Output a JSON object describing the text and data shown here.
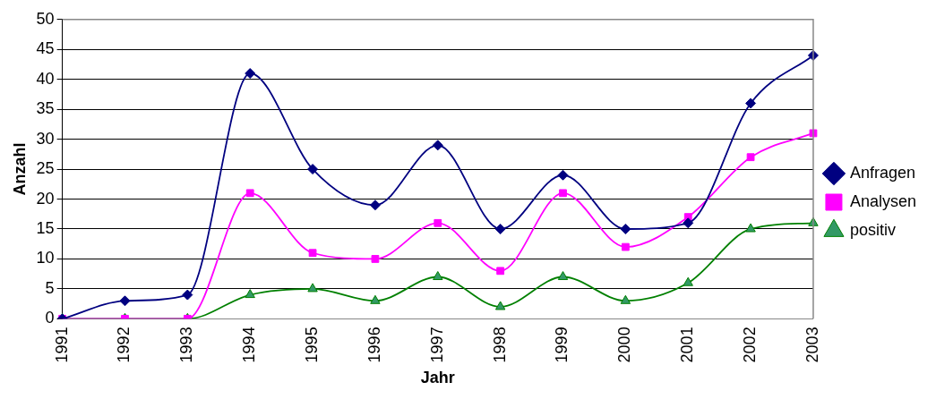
{
  "chart_data": {
    "type": "line",
    "xlabel": "Jahr",
    "ylabel": "Anzahl",
    "categories": [
      "1991",
      "1992",
      "1993",
      "1994",
      "1995",
      "1996",
      "1997",
      "1998",
      "1999",
      "2000",
      "2001",
      "2002",
      "2003"
    ],
    "series": [
      {
        "name": "Anfragen",
        "color": "#000080",
        "marker": "diamond",
        "values": [
          0,
          3,
          4,
          41,
          25,
          19,
          29,
          15,
          24,
          15,
          16,
          36,
          44
        ]
      },
      {
        "name": "Analysen",
        "color": "#ff00ff",
        "marker": "square",
        "values": [
          0,
          0,
          0,
          21,
          11,
          10,
          16,
          8,
          21,
          12,
          17,
          27,
          31
        ]
      },
      {
        "name": "positiv",
        "color": "#008000",
        "marker": "triangle",
        "values": [
          0,
          0,
          0,
          4,
          5,
          3,
          7,
          2,
          7,
          3,
          6,
          15,
          16
        ]
      }
    ],
    "ylim": [
      0,
      50
    ],
    "yticks": [
      0,
      5,
      10,
      15,
      20,
      25,
      30,
      35,
      40,
      45,
      50
    ],
    "grid": "y",
    "legend": "right"
  }
}
